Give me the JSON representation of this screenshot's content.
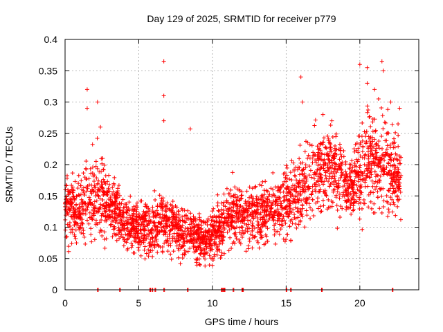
{
  "chart_data": {
    "type": "scatter",
    "title": "Day 129 of 2025, SRMTID for receiver p779",
    "xlabel": "GPS time / hours",
    "ylabel": "SRMTID / TECUs",
    "xlim": [
      0,
      24
    ],
    "ylim": [
      0,
      0.4
    ],
    "xticks": [
      0,
      5,
      10,
      15,
      20
    ],
    "xtick_labels": [
      "0",
      "5",
      "10",
      "15",
      "20"
    ],
    "yticks": [
      0,
      0.05,
      0.1,
      0.15,
      0.2,
      0.25,
      0.3,
      0.35,
      0.4
    ],
    "ytick_labels": [
      "0",
      "0.05",
      "0.1",
      "0.15",
      "0.2",
      "0.25",
      "0.3",
      "0.35",
      "0.4"
    ],
    "grid": true,
    "marker": "+",
    "color": "#ff0000",
    "trend_x": [
      0,
      0.5,
      1,
      1.5,
      2,
      2.5,
      3,
      3.5,
      4,
      4.5,
      5,
      5.5,
      6,
      6.5,
      7,
      7.5,
      8,
      8.5,
      9,
      9.5,
      10,
      10.5,
      11,
      11.5,
      12,
      12.5,
      13,
      13.5,
      14,
      14.5,
      15,
      15.5,
      16,
      16.5,
      17,
      17.5,
      18,
      18.5,
      19,
      19.5,
      20,
      20.5,
      21,
      21.5,
      22,
      22.5,
      23
    ],
    "trend_y": [
      0.14,
      0.13,
      0.13,
      0.14,
      0.15,
      0.15,
      0.14,
      0.12,
      0.11,
      0.1,
      0.1,
      0.1,
      0.1,
      0.11,
      0.1,
      0.1,
      0.09,
      0.09,
      0.08,
      0.08,
      0.09,
      0.1,
      0.11,
      0.12,
      0.12,
      0.12,
      0.12,
      0.12,
      0.13,
      0.13,
      0.14,
      0.15,
      0.16,
      0.17,
      0.19,
      0.2,
      0.2,
      0.18,
      0.17,
      0.17,
      0.19,
      0.21,
      0.21,
      0.2,
      0.19,
      0.19,
      0.18
    ],
    "scatter_std": [
      0.04,
      0.04,
      0.04,
      0.05,
      0.05,
      0.05,
      0.04,
      0.04,
      0.03,
      0.03,
      0.03,
      0.03,
      0.03,
      0.04,
      0.03,
      0.03,
      0.03,
      0.03,
      0.03,
      0.03,
      0.03,
      0.03,
      0.035,
      0.035,
      0.035,
      0.035,
      0.035,
      0.035,
      0.035,
      0.035,
      0.04,
      0.04,
      0.045,
      0.05,
      0.05,
      0.05,
      0.05,
      0.05,
      0.04,
      0.04,
      0.05,
      0.06,
      0.06,
      0.06,
      0.06,
      0.05,
      0.05
    ],
    "points_per_hour": 130,
    "data_end_hour": 22.8,
    "spikes": [
      {
        "x": 1.5,
        "y": 0.32
      },
      {
        "x": 1.5,
        "y": 0.29
      },
      {
        "x": 2.2,
        "y": 0.3
      },
      {
        "x": 2.4,
        "y": 0.26
      },
      {
        "x": 6.7,
        "y": 0.365
      },
      {
        "x": 6.7,
        "y": 0.31
      },
      {
        "x": 6.7,
        "y": 0.27
      },
      {
        "x": 8.5,
        "y": 0.257
      },
      {
        "x": 16.0,
        "y": 0.34
      },
      {
        "x": 16.1,
        "y": 0.3
      },
      {
        "x": 17.5,
        "y": 0.28
      },
      {
        "x": 20.0,
        "y": 0.36
      },
      {
        "x": 20.5,
        "y": 0.355
      },
      {
        "x": 20.5,
        "y": 0.33
      },
      {
        "x": 21.0,
        "y": 0.32
      },
      {
        "x": 21.5,
        "y": 0.365
      },
      {
        "x": 21.6,
        "y": 0.35
      },
      {
        "x": 22.1,
        "y": 0.3
      },
      {
        "x": 22.7,
        "y": 0.29
      }
    ],
    "zero_markers_x": [
      2.2,
      3.7,
      5.75,
      5.9,
      6.1,
      6.7,
      8.3,
      10.6,
      10.7,
      10.8,
      11.4,
      12.0,
      12.05,
      15.0,
      15.3,
      17.4,
      22.2
    ]
  }
}
